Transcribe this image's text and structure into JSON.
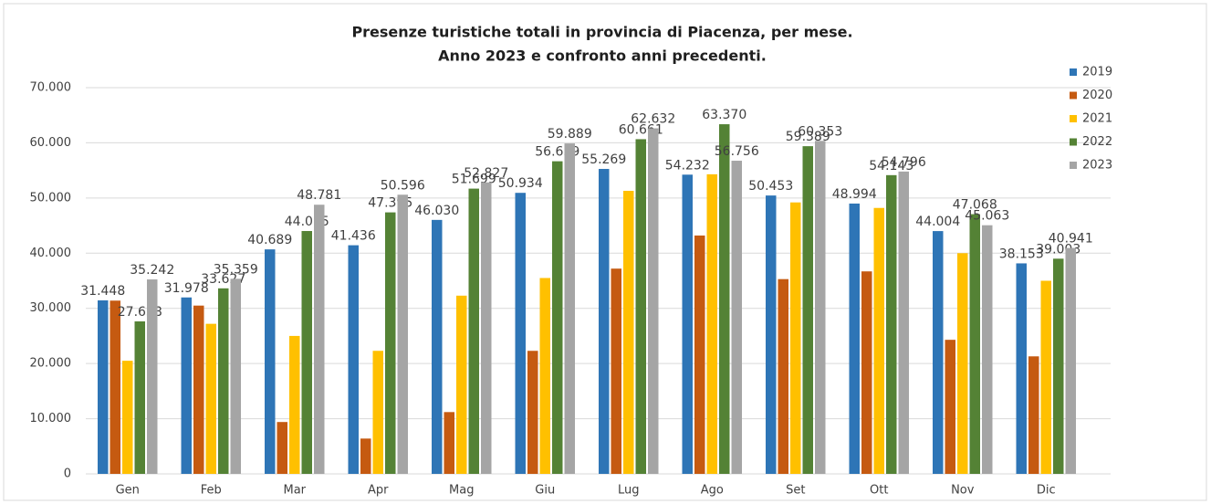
{
  "chart_data": {
    "type": "bar",
    "title": "Presenze turistiche totali in provincia di Piacenza, per mese.",
    "subtitle": "Anno 2023 e confronto anni precedenti.",
    "categories": [
      "Gen",
      "Feb",
      "Mar",
      "Apr",
      "Mag",
      "Giu",
      "Lug",
      "Ago",
      "Set",
      "Ott",
      "Nov",
      "Dic"
    ],
    "series": [
      {
        "name": "2019",
        "color": "#2e75b6",
        "values": [
          31448,
          31978,
          40689,
          41436,
          46030,
          50934,
          55269,
          54232,
          50453,
          48994,
          44004,
          38153
        ],
        "value_labels": [
          "31.448",
          "31.978",
          "40.689",
          "41.436",
          "46.030",
          "50.934",
          "55.269",
          "54.232",
          "50.453",
          "48.994",
          "44.004",
          "38.153"
        ]
      },
      {
        "name": "2020",
        "color": "#c55a11",
        "values": [
          31400,
          30500,
          9400,
          6400,
          11200,
          22300,
          37200,
          43200,
          35300,
          36700,
          24300,
          21300
        ]
      },
      {
        "name": "2021",
        "color": "#ffc000",
        "values": [
          20500,
          27200,
          25000,
          22300,
          32300,
          35500,
          51300,
          54300,
          49200,
          48200,
          40000,
          35000
        ]
      },
      {
        "name": "2022",
        "color": "#548235",
        "values": [
          27638,
          33627,
          44015,
          47395,
          51699,
          56659,
          60661,
          63370,
          59389,
          54143,
          47068,
          39003
        ],
        "value_labels": [
          "27.638",
          "33.627",
          "44.015",
          "47.395",
          "51.699",
          "56.659",
          "60.661",
          "63.370",
          "59.389",
          "54.143",
          "47.068",
          "39.003"
        ]
      },
      {
        "name": "2023",
        "color": "#a5a5a5",
        "values": [
          35242,
          35359,
          48781,
          50596,
          52827,
          59889,
          62632,
          56756,
          60353,
          54796,
          45063,
          40941
        ],
        "value_labels": [
          "35.242",
          "35.359",
          "48.781",
          "50.596",
          "52.827",
          "59.889",
          "62.632",
          "56.756",
          "60.353",
          "54.796",
          "45.063",
          "40.941"
        ]
      }
    ],
    "ylim": [
      0,
      70000
    ],
    "yticks": [
      0,
      {
        "value": 10000,
        "label": "10.000"
      },
      {
        "value": 20000,
        "label": "20.000"
      },
      {
        "value": 30000,
        "label": "30.000"
      },
      {
        "value": 40000,
        "label": "40.000"
      },
      {
        "value": 50000,
        "label": "50.000"
      },
      {
        "value": 60000,
        "label": "60.000"
      },
      {
        "value": 70000,
        "label": "70.000"
      }
    ],
    "grid": true,
    "legend": "right"
  }
}
